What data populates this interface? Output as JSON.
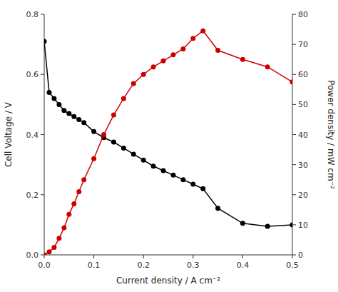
{
  "chart_data": {
    "type": "line",
    "xlabel": "Current density / A cm⁻²",
    "ylabel": "Cell Voltage / V",
    "y2label": "Power density / mW cm⁻²",
    "x": [
      0.0,
      0.01,
      0.02,
      0.03,
      0.04,
      0.05,
      0.06,
      0.07,
      0.08,
      0.1,
      0.12,
      0.14,
      0.16,
      0.18,
      0.2,
      0.22,
      0.24,
      0.26,
      0.28,
      0.3,
      0.32,
      0.35,
      0.4,
      0.45,
      0.5
    ],
    "series": [
      {
        "color": "#000000",
        "marker": "circle",
        "axis": "y",
        "values": [
          0.71,
          0.54,
          0.52,
          0.5,
          0.48,
          0.47,
          0.46,
          0.45,
          0.44,
          0.41,
          0.39,
          0.375,
          0.355,
          0.335,
          0.315,
          0.295,
          0.28,
          0.265,
          0.25,
          0.235,
          0.22,
          0.155,
          0.105,
          0.095,
          0.1
        ]
      },
      {
        "color": "#cc0000",
        "marker": "circle",
        "axis": "y2",
        "values": [
          0.0,
          1.0,
          2.5,
          5.5,
          9.0,
          13.5,
          17.0,
          21.0,
          25.0,
          32.0,
          40.0,
          46.5,
          52.0,
          57.0,
          60.0,
          62.5,
          64.5,
          66.5,
          68.5,
          72.0,
          74.5,
          68.0,
          65.0,
          62.5,
          57.5
        ]
      }
    ],
    "xlim": [
      0,
      0.5
    ],
    "xticks": [
      {
        "value": 0,
        "label": "0.0"
      },
      0.1,
      0.2,
      0.3,
      0.4,
      0.5
    ],
    "ylim": [
      0,
      0.8
    ],
    "yticks": [
      {
        "value": 0,
        "label": "0.0"
      },
      0.2,
      0.4,
      0.6,
      0.8
    ],
    "y2lim": [
      0,
      80
    ],
    "y2ticks": [
      0,
      10,
      20,
      30,
      40,
      50,
      60,
      70,
      80
    ],
    "grid": false
  }
}
